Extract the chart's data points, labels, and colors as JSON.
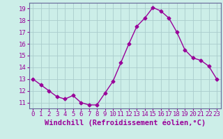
{
  "x": [
    0,
    1,
    2,
    3,
    4,
    5,
    6,
    7,
    8,
    9,
    10,
    11,
    12,
    13,
    14,
    15,
    16,
    17,
    18,
    19,
    20,
    21,
    22,
    23
  ],
  "y": [
    13.0,
    12.5,
    12.0,
    11.5,
    11.3,
    11.6,
    11.0,
    10.8,
    10.8,
    11.8,
    12.8,
    14.4,
    16.0,
    17.5,
    18.2,
    19.1,
    18.8,
    18.2,
    17.0,
    15.5,
    14.8,
    14.6,
    14.1,
    13.0
  ],
  "line_color": "#990099",
  "marker": "D",
  "marker_size": 2.5,
  "bg_color": "#cceee8",
  "grid_color": "#aacccc",
  "xlabel": "Windchill (Refroidissement éolien,°C)",
  "ylabel": "",
  "xlim": [
    -0.5,
    23.5
  ],
  "ylim": [
    10.5,
    19.5
  ],
  "yticks": [
    11,
    12,
    13,
    14,
    15,
    16,
    17,
    18,
    19
  ],
  "xticks": [
    0,
    1,
    2,
    3,
    4,
    5,
    6,
    7,
    8,
    9,
    10,
    11,
    12,
    13,
    14,
    15,
    16,
    17,
    18,
    19,
    20,
    21,
    22,
    23
  ],
  "tick_label_color": "#990099",
  "tick_label_fontsize": 6.5,
  "xlabel_fontsize": 7.5,
  "xlabel_color": "#990099",
  "axis_color": "#990099",
  "spine_color": "#666699"
}
